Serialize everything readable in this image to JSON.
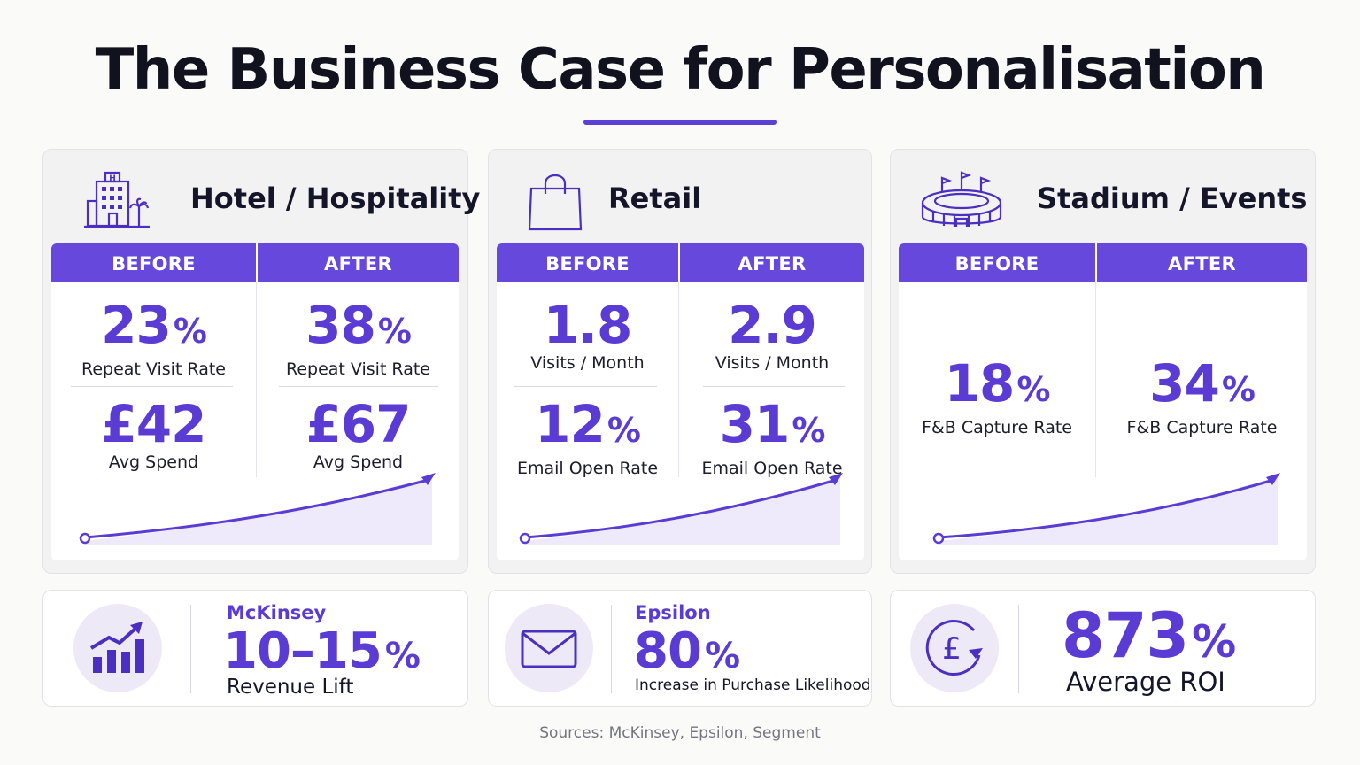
{
  "title": "The Business Case for Personalisation",
  "colors": {
    "accent": "#6648dd",
    "accent_text": "#5a3cd4",
    "panel_bg": "#f3f2f3"
  },
  "cards": [
    {
      "title": "Hotel / Hospitality",
      "icon": "hotel-icon",
      "before_label": "BEFORE",
      "after_label": "AFTER",
      "before": [
        {
          "value": "23",
          "unit": "%",
          "label": "Repeat Visit Rate"
        },
        {
          "value": "£42",
          "unit": "",
          "label": "Avg Spend"
        }
      ],
      "after": [
        {
          "value": "38",
          "unit": "%",
          "label": "Repeat Visit Rate"
        },
        {
          "value": "£67",
          "unit": "",
          "label": "Avg Spend"
        }
      ],
      "trend_icon": "upward-trend-line-icon"
    },
    {
      "title": "Retail",
      "icon": "shopping-bag-icon",
      "before_label": "BEFORE",
      "after_label": "AFTER",
      "before": [
        {
          "value": "1.8",
          "unit": "",
          "label": "Visits / Month"
        },
        {
          "value": "12",
          "unit": "%",
          "label": "Email Open Rate"
        }
      ],
      "after": [
        {
          "value": "2.9",
          "unit": "",
          "label": "Visits / Month"
        },
        {
          "value": "31",
          "unit": "%",
          "label": "Email Open Rate"
        }
      ],
      "trend_icon": "upward-trend-line-icon"
    },
    {
      "title": "Stadium / Events",
      "icon": "stadium-icon",
      "before_label": "BEFORE",
      "after_label": "AFTER",
      "before": [
        {
          "value": "18",
          "unit": "%",
          "label": "F&B Capture Rate"
        }
      ],
      "after": [
        {
          "value": "34",
          "unit": "%",
          "label": "F&B Capture Rate"
        }
      ],
      "trend_icon": "upward-trend-line-icon"
    }
  ],
  "bottom": [
    {
      "source": "McKinsey",
      "value": "10–15",
      "unit": "%",
      "label": "Revenue Lift",
      "icon": "bar-chart-growth-icon"
    },
    {
      "source": "Epsilon",
      "value": "80",
      "unit": "%",
      "label": "Increase in Purchase Likelihood",
      "icon": "envelope-icon"
    },
    {
      "source": "",
      "value": "873",
      "unit": "%",
      "label": "Average ROI",
      "icon": "pound-cycle-icon"
    }
  ],
  "sources": "Sources:  McKinsey, Epsilon, Segment"
}
